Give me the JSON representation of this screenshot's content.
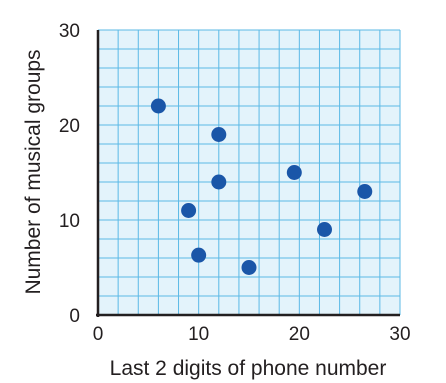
{
  "chart_data": {
    "type": "scatter",
    "title": "",
    "xlabel": "Last 2 digits of phone number",
    "ylabel": "Number of musical groups",
    "xlim": [
      0,
      30
    ],
    "ylim": [
      0,
      30
    ],
    "x_ticks": [
      0,
      10,
      20,
      30
    ],
    "y_ticks": [
      0,
      10,
      20,
      30
    ],
    "grid": true,
    "grid_step": 2,
    "points": [
      {
        "x": 6,
        "y": 22
      },
      {
        "x": 12,
        "y": 19
      },
      {
        "x": 12,
        "y": 14
      },
      {
        "x": 19.5,
        "y": 15
      },
      {
        "x": 26.5,
        "y": 13
      },
      {
        "x": 9,
        "y": 11
      },
      {
        "x": 22.5,
        "y": 9
      },
      {
        "x": 10,
        "y": 6.3
      },
      {
        "x": 15,
        "y": 5
      }
    ],
    "colors": {
      "grid_fill": "#e3f3fb",
      "grid_line": "#5bb9e6",
      "axis": "#231f20",
      "point": "#1a56a8"
    }
  }
}
